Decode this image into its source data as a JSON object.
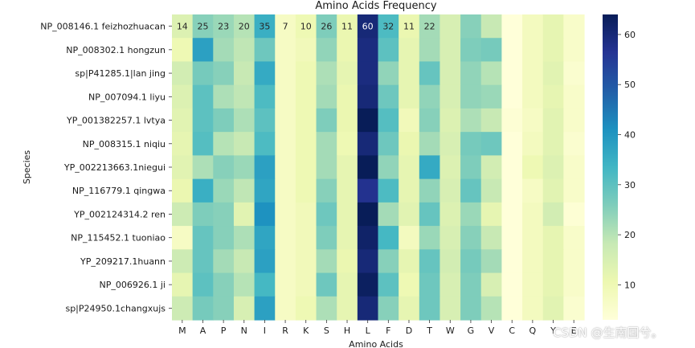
{
  "chart_data": {
    "type": "heatmap",
    "title": "Amino Acids Frequency",
    "xlabel": "Amino Acids",
    "ylabel": "Species",
    "columns": [
      "M",
      "A",
      "P",
      "N",
      "I",
      "R",
      "K",
      "S",
      "H",
      "L",
      "F",
      "D",
      "T",
      "W",
      "G",
      "V",
      "C",
      "Q",
      "Y",
      "E"
    ],
    "rows": [
      "NP_008146.1 feizhozhuacan",
      "NP_008302.1 hongzun",
      "sp|P41285.1|lan jing",
      "NP_007094.1 liyu",
      "YP_001382257.1 lvtya",
      "NP_008315.1 niqiu",
      "YP_002213663.1niegui",
      "NP_116779.1 qingwa",
      "YP_002124314.2 ren",
      "NP_115452.1 tuoniao",
      "YP_209217.1huann",
      "NP_006926.1 ji",
      "sp|P24950.1changxujs"
    ],
    "values": [
      [
        14,
        25,
        23,
        20,
        35,
        7,
        10,
        26,
        11,
        60,
        32,
        11,
        22,
        15,
        25,
        18,
        3,
        8,
        12,
        6
      ],
      [
        10,
        38,
        22,
        19,
        28,
        7,
        9,
        24,
        11,
        59,
        30,
        12,
        22,
        15,
        26,
        27,
        3,
        8,
        12,
        6
      ],
      [
        16,
        27,
        25,
        18,
        36,
        7,
        10,
        21,
        12,
        59,
        24,
        12,
        29,
        15,
        24,
        20,
        3,
        8,
        13,
        5
      ],
      [
        14,
        30,
        21,
        19,
        32,
        7,
        10,
        22,
        11,
        60,
        28,
        12,
        24,
        15,
        24,
        23,
        3,
        8,
        12,
        6
      ],
      [
        13,
        30,
        26,
        21,
        30,
        7,
        10,
        26,
        11,
        64,
        31,
        9,
        25,
        14,
        21,
        18,
        4,
        7,
        13,
        6
      ],
      [
        12,
        31,
        20,
        18,
        32,
        7,
        10,
        22,
        10,
        60,
        28,
        11,
        22,
        15,
        27,
        28,
        3,
        8,
        13,
        5
      ],
      [
        13,
        21,
        25,
        23,
        38,
        7,
        10,
        22,
        12,
        64,
        24,
        12,
        36,
        14,
        26,
        16,
        3,
        10,
        14,
        6
      ],
      [
        11,
        35,
        23,
        19,
        37,
        7,
        10,
        25,
        12,
        57,
        32,
        12,
        24,
        15,
        29,
        18,
        3,
        7,
        13,
        6
      ],
      [
        17,
        26,
        25,
        13,
        41,
        7,
        9,
        28,
        12,
        64,
        22,
        13,
        29,
        14,
        23,
        12,
        3,
        8,
        16,
        4
      ],
      [
        7,
        29,
        25,
        21,
        37,
        7,
        9,
        26,
        12,
        62,
        33,
        8,
        23,
        15,
        25,
        18,
        3,
        8,
        12,
        6
      ],
      [
        17,
        29,
        22,
        18,
        38,
        7,
        9,
        22,
        11,
        60,
        25,
        12,
        29,
        16,
        27,
        22,
        3,
        8,
        12,
        6
      ],
      [
        12,
        30,
        25,
        20,
        33,
        7,
        9,
        28,
        12,
        63,
        30,
        10,
        28,
        15,
        26,
        15,
        3,
        8,
        12,
        6
      ],
      [
        17,
        27,
        25,
        15,
        38,
        7,
        10,
        21,
        12,
        60,
        25,
        12,
        28,
        15,
        26,
        20,
        3,
        8,
        13,
        5
      ]
    ],
    "annotated_row": 0,
    "colorbar": {
      "vmin": 3,
      "vmax": 64,
      "ticks": [
        10,
        20,
        30,
        40,
        50,
        60
      ]
    },
    "colormap": [
      "#ffffd9",
      "#edf8b1",
      "#c7e9b4",
      "#7fcdbb",
      "#41b6c4",
      "#1d91c0",
      "#225ea8",
      "#253494",
      "#081d58"
    ]
  },
  "watermark": "CSDN @生南国兮。"
}
